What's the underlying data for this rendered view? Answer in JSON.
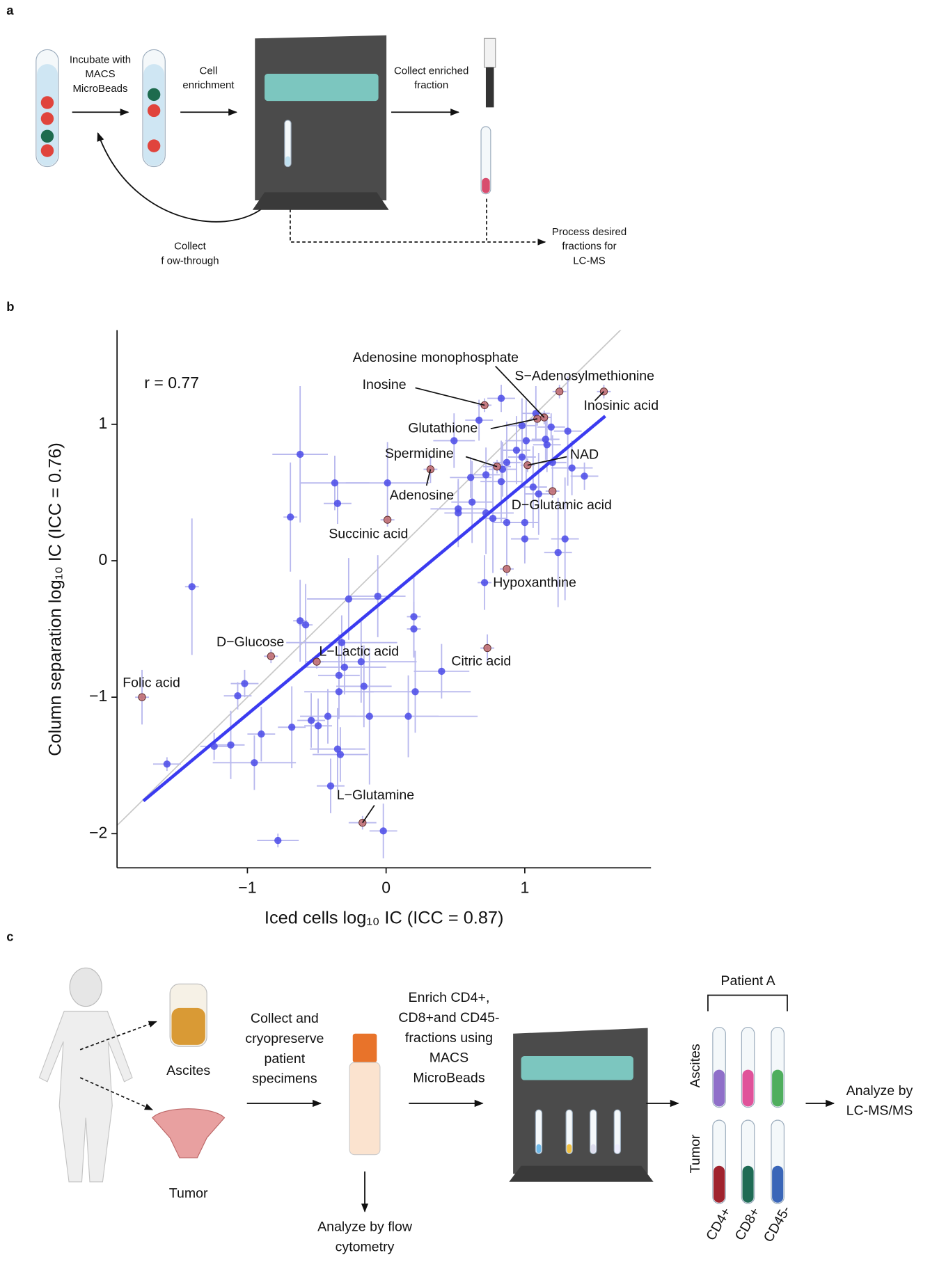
{
  "panel_a": {
    "label": "a",
    "incubate": [
      "Incubate with",
      "MACS",
      "MicroBeads"
    ],
    "cell_enrichment": [
      "Cell",
      "enrichment"
    ],
    "collect_enriched": [
      "Collect enriched",
      "fraction"
    ],
    "collect_flow": [
      "Collect",
      "f ow-through"
    ],
    "process": [
      "Process desired",
      "fractions for",
      "LC-MS"
    ]
  },
  "chart_data": {
    "type": "scatter",
    "panel_label": "b",
    "annotation": "r = 0.77",
    "xlabel": "Iced cells log₁₀ IC (ICC = 0.87)",
    "ylabel": "Column separation log₁₀ IC (ICC = 0.76)",
    "xlim": [
      -1.94,
      1.91
    ],
    "ylim": [
      -2.25,
      1.69
    ],
    "xticks": [
      {
        "value": -1,
        "label": "−1"
      },
      0,
      1
    ],
    "yticks": [
      {
        "value": -2,
        "label": "−2"
      },
      {
        "value": -1,
        "label": "−1"
      },
      0,
      1
    ],
    "identity_line_color": "#c8c8c8",
    "regression_line": {
      "color": "#3b3bf0",
      "x": [
        -1.75,
        1.58
      ],
      "values": [
        -1.76,
        1.06
      ]
    },
    "series": [
      {
        "color": "#4a4ae8",
        "error_color": "#b8b8ee",
        "x": [
          -0.62,
          -0.69,
          -1.4,
          -0.37,
          -0.35,
          0.01,
          0.49,
          0.67,
          0.83,
          0.98,
          1.08,
          1.15,
          1.19,
          1.31,
          1.16,
          1.01,
          0.94,
          0.98,
          0.87,
          0.84,
          0.72,
          0.61,
          0.52,
          0.52,
          0.62,
          0.72,
          0.77,
          0.83,
          0.87,
          1.0,
          1.0,
          1.06,
          1.1,
          1.2,
          1.34,
          1.43,
          1.29,
          1.24,
          0.71,
          -0.06,
          -0.27,
          -0.62,
          -0.58,
          0.2,
          0.2,
          -0.32,
          -0.18,
          -0.3,
          -0.34,
          0.4,
          -1.02,
          -1.07,
          -0.16,
          -0.34,
          0.21,
          -0.42,
          -0.12,
          0.16,
          -0.54,
          -0.49,
          -0.68,
          -0.9,
          -1.12,
          -1.24,
          -0.35,
          -0.33,
          -0.95,
          -1.58,
          -0.4,
          -0.02,
          -0.78
        ],
        "values": [
          0.78,
          0.32,
          -0.19,
          0.57,
          0.42,
          0.57,
          0.88,
          1.03,
          1.19,
          0.99,
          1.08,
          0.89,
          0.98,
          0.95,
          0.85,
          0.88,
          0.81,
          0.76,
          0.72,
          0.67,
          0.63,
          0.61,
          0.35,
          0.38,
          0.43,
          0.35,
          0.31,
          0.58,
          0.28,
          0.28,
          0.16,
          0.54,
          0.49,
          0.72,
          0.68,
          0.62,
          0.16,
          0.06,
          -0.16,
          -0.26,
          -0.28,
          -0.44,
          -0.47,
          -0.41,
          -0.5,
          -0.6,
          -0.74,
          -0.78,
          -0.84,
          -0.81,
          -0.9,
          -0.99,
          -0.92,
          -0.96,
          -0.96,
          -1.14,
          -1.14,
          -1.14,
          -1.17,
          -1.21,
          -1.22,
          -1.27,
          -1.35,
          -1.36,
          -1.38,
          -1.42,
          -1.48,
          -1.49,
          -1.65,
          -1.98,
          -2.05
        ],
        "xerr": [
          0.2,
          0.05,
          0.05,
          0.25,
          0.1,
          0.3,
          0.15,
          0.1,
          0.1,
          0.1,
          0.1,
          0.1,
          0.1,
          0.1,
          0.1,
          0.15,
          0.1,
          0.1,
          0.1,
          0.1,
          0.1,
          0.15,
          0.1,
          0.2,
          0.15,
          0.2,
          0.1,
          0.15,
          0.1,
          0.1,
          0.1,
          0.1,
          0.1,
          0.1,
          0.15,
          0.1,
          0.1,
          0.1,
          0.05,
          0.2,
          0.3,
          0.05,
          0.05,
          0.05,
          0.05,
          0.4,
          0.4,
          0.3,
          0.15,
          0.2,
          0.1,
          0.1,
          0.2,
          0.25,
          0.4,
          0.2,
          0.5,
          0.5,
          0.1,
          0.1,
          0.1,
          0.1,
          0.1,
          0.1,
          0.2,
          0.2,
          0.3,
          0.1,
          0.1,
          0.1,
          0.15
        ],
        "yerr": [
          0.5,
          0.4,
          0.5,
          0.2,
          0.15,
          0.3,
          0.2,
          0.15,
          0.1,
          0.2,
          0.2,
          0.15,
          0.1,
          0.4,
          0.2,
          0.3,
          0.25,
          0.2,
          0.3,
          0.2,
          0.2,
          0.15,
          0.25,
          0.2,
          0.3,
          0.3,
          0.4,
          0.3,
          0.3,
          0.3,
          0.15,
          0.3,
          0.3,
          0.2,
          0.2,
          0.1,
          0.45,
          0.4,
          0.2,
          0.3,
          0.3,
          0.3,
          0.3,
          0.3,
          0.2,
          0.2,
          0.3,
          0.2,
          0.3,
          0.2,
          0.1,
          0.1,
          0.3,
          0.2,
          0.3,
          0.2,
          0.5,
          0.3,
          0.2,
          0.2,
          0.3,
          0.2,
          0.25,
          0.1,
          0.3,
          0.2,
          0.2,
          0.05,
          0.2,
          0.2,
          0.05
        ]
      },
      {
        "color": "#c0696c",
        "error_color": "#b8b8ee",
        "labels": [
          "Folic acid",
          "D−Glucose",
          "L−Lactic acid",
          "Succinic acid",
          "Adenosine",
          "Inosine",
          "Spermidine",
          "Adenosine monophosphate",
          "S−Adenosylmethionine",
          "Inosinic acid",
          "Glutathione",
          "NAD",
          "D−Glutamic acid",
          "Hypoxanthine",
          "Citric acid",
          "L−Glutamine"
        ],
        "x": [
          -1.76,
          -0.83,
          -0.5,
          0.01,
          0.32,
          0.71,
          0.8,
          1.14,
          1.25,
          1.57,
          1.09,
          1.02,
          1.2,
          0.87,
          0.73,
          -0.17
        ],
        "values": [
          -1.0,
          -0.7,
          -0.74,
          0.3,
          0.67,
          1.14,
          0.69,
          1.05,
          1.24,
          1.24,
          1.04,
          0.7,
          0.51,
          -0.06,
          -0.64,
          -1.92
        ],
        "xerr": [
          0.05,
          0.05,
          0.05,
          0.05,
          0.05,
          0.05,
          0.1,
          0.05,
          0.05,
          0.05,
          0.05,
          0.05,
          0.05,
          0.05,
          0.05,
          0.1
        ],
        "yerr": [
          0.2,
          0.05,
          0.05,
          0.05,
          0.1,
          0.05,
          0.05,
          0.05,
          0.05,
          0.05,
          0.05,
          0.05,
          0.05,
          0.05,
          0.1,
          0.05
        ]
      }
    ]
  },
  "panel_c": {
    "label": "c",
    "ascites": "Ascites",
    "tumor": "Tumor",
    "collect": [
      "Collect and",
      "cryopreserve",
      "patient",
      "specimens"
    ],
    "enrich": [
      "Enrich CD4+,",
      "CD8+and CD45-",
      "fractions using",
      "MACS",
      "MicroBeads"
    ],
    "flow": [
      "Analyze by flow",
      "cytometry"
    ],
    "patient": "Patient A",
    "rows": [
      "Ascites",
      "Tumor"
    ],
    "columns": [
      "CD4+",
      "CD8+",
      "CD45-"
    ],
    "lcms": [
      "Analyze by",
      "LC-MS/MS"
    ]
  }
}
